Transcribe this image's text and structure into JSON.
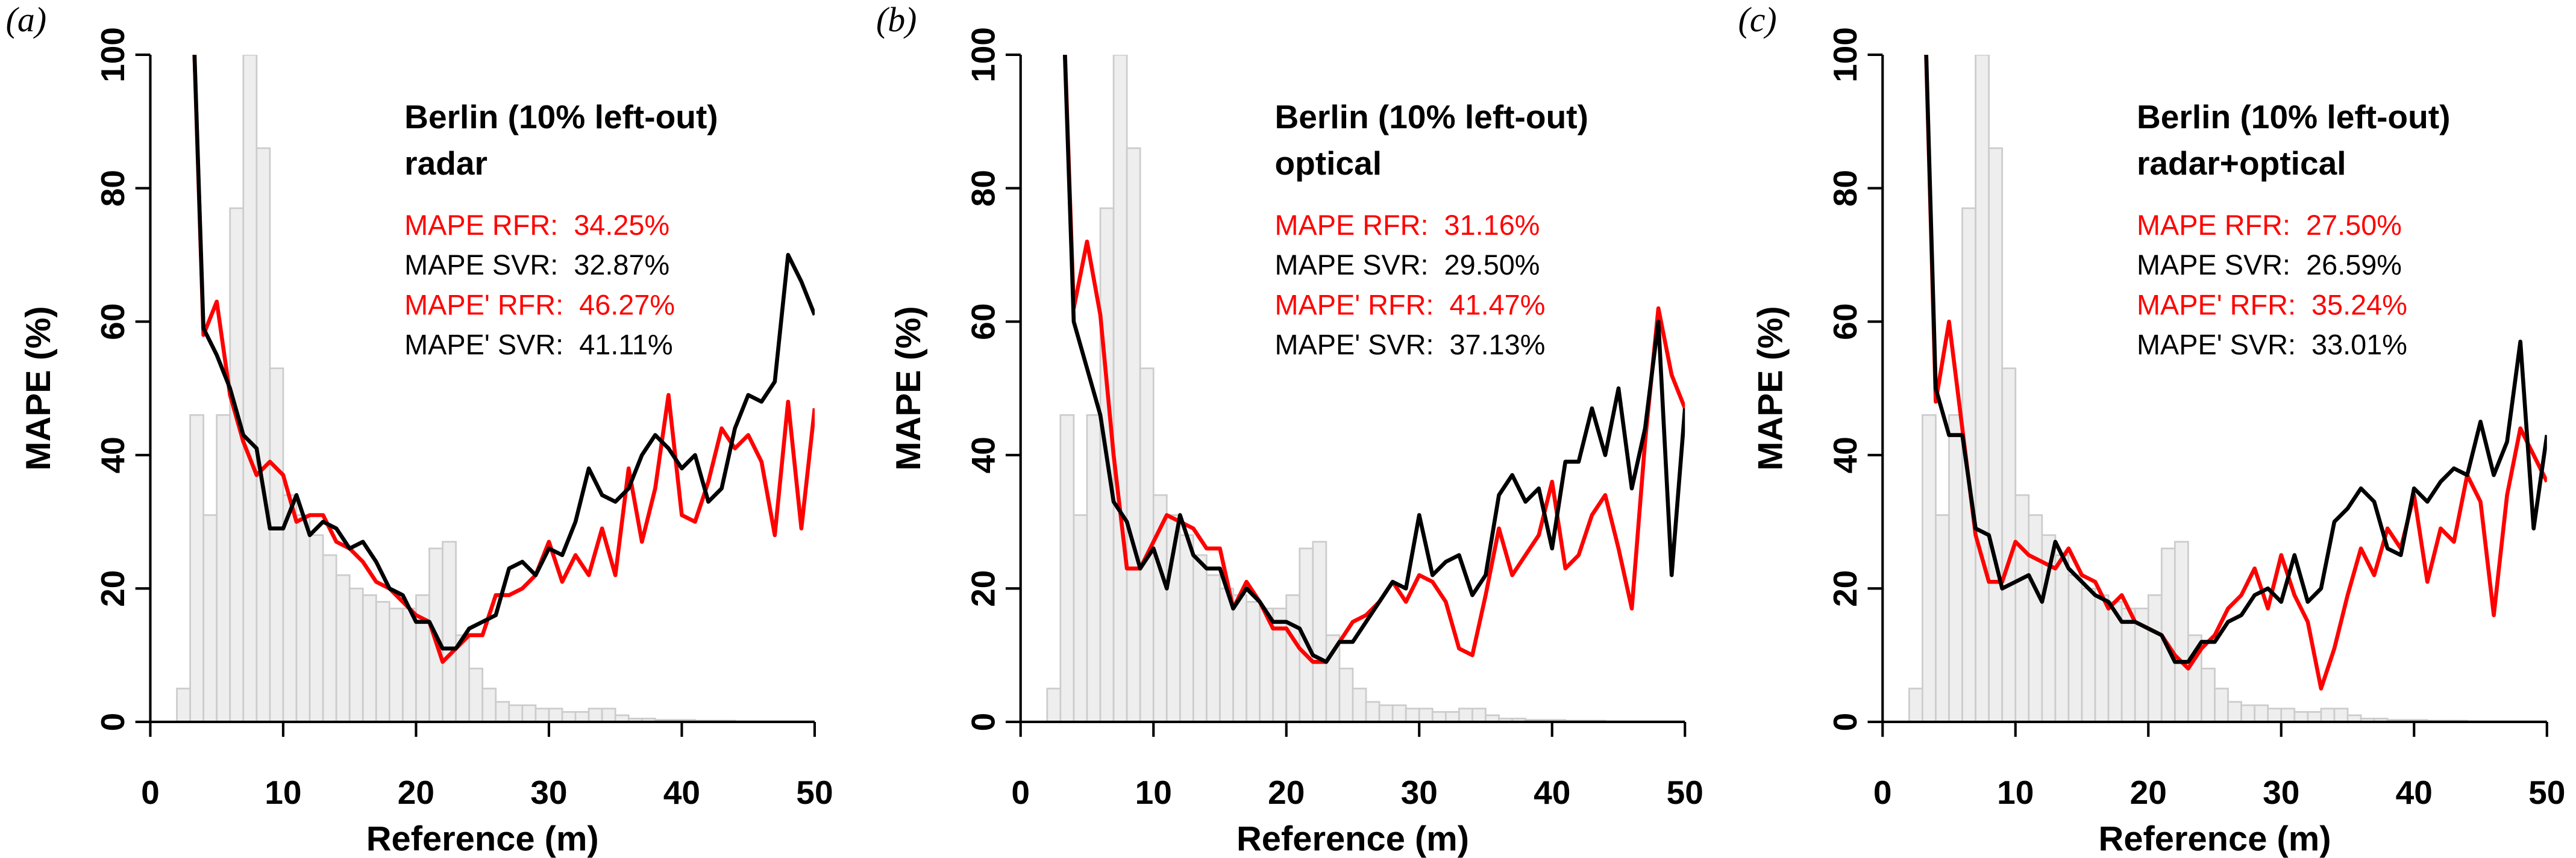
{
  "chart_data": [
    {
      "type": "line",
      "panel_label": "(a)",
      "title": "Berlin (10% left-out)",
      "subtitle": "radar",
      "annotations": [
        {
          "text": "MAPE RFR:  34.25%",
          "color": "#ff0000"
        },
        {
          "text": "MAPE SVR:  32.87%",
          "color": "#000000"
        },
        {
          "text": "MAPE' RFR:  46.27%",
          "color": "#ff0000"
        },
        {
          "text": "MAPE' SVR:  41.11%",
          "color": "#000000"
        }
      ],
      "xlabel": "Reference (m)",
      "ylabel": "MAPE (%)",
      "xlim": [
        0,
        50
      ],
      "ylim": [
        0,
        100
      ],
      "xticks": [
        0,
        10,
        20,
        30,
        40,
        50
      ],
      "yticks": [
        0,
        20,
        40,
        60,
        80,
        100
      ],
      "x": [
        3,
        4,
        5,
        6,
        7,
        8,
        9,
        10,
        11,
        12,
        13,
        14,
        15,
        16,
        17,
        18,
        19,
        20,
        21,
        22,
        23,
        24,
        25,
        26,
        27,
        28,
        29,
        30,
        31,
        32,
        33,
        34,
        35,
        36,
        37,
        38,
        39,
        40,
        41,
        42,
        43,
        44,
        45,
        46,
        47,
        48,
        49,
        50
      ],
      "series": [
        {
          "color": "#ff0000",
          "values": [
            120,
            58,
            63,
            49,
            42,
            37,
            39,
            37,
            30,
            31,
            31,
            27,
            26,
            24,
            21,
            20,
            18,
            16,
            15,
            9,
            11,
            13,
            13,
            19,
            19,
            20,
            22,
            27,
            21,
            25,
            22,
            29,
            22,
            38,
            27,
            35,
            49,
            31,
            30,
            36,
            44,
            41,
            43,
            39,
            28,
            48,
            29,
            47
          ]
        },
        {
          "color": "#000000",
          "values": [
            120,
            59,
            55,
            50,
            43,
            41,
            29,
            29,
            34,
            28,
            30,
            29,
            26,
            27,
            24,
            20,
            19,
            15,
            15,
            11,
            11,
            14,
            15,
            16,
            23,
            24,
            22,
            26,
            25,
            30,
            38,
            34,
            33,
            35,
            40,
            43,
            41,
            38,
            40,
            33,
            35,
            44,
            49,
            48,
            51,
            70,
            66,
            61
          ]
        }
      ],
      "histogram": {
        "fill": "#eeeeee",
        "stroke": "#cccccc",
        "bins": [
          2,
          3,
          4,
          5,
          6,
          7,
          8,
          9,
          10,
          11,
          12,
          13,
          14,
          15,
          16,
          17,
          18,
          19,
          20,
          21,
          22,
          23,
          24,
          25,
          26,
          27,
          28,
          29,
          30,
          31,
          32,
          33,
          34,
          35,
          36,
          37,
          38,
          39,
          40,
          41,
          42,
          43,
          44,
          45,
          46,
          47,
          48,
          49,
          50
        ],
        "counts": [
          5,
          46,
          31,
          46,
          77,
          100,
          86,
          53,
          34,
          31,
          28,
          25,
          22,
          20,
          19,
          18,
          17,
          17,
          19,
          26,
          27,
          13,
          8,
          5,
          3,
          2.5,
          2.5,
          2,
          2,
          1.5,
          1.5,
          2,
          2,
          1,
          0.5,
          0.5,
          0.3,
          0.3,
          0.3,
          0.2,
          0.2,
          0.2,
          0.1,
          0.1,
          0.1,
          0.1,
          0.1,
          0.1
        ]
      }
    },
    {
      "type": "line",
      "panel_label": "(b)",
      "title": "Berlin (10% left-out)",
      "subtitle": "optical",
      "annotations": [
        {
          "text": "MAPE RFR:  31.16%",
          "color": "#ff0000"
        },
        {
          "text": "MAPE SVR:  29.50%",
          "color": "#000000"
        },
        {
          "text": "MAPE' RFR:  41.47%",
          "color": "#ff0000"
        },
        {
          "text": "MAPE' SVR:  37.13%",
          "color": "#000000"
        }
      ],
      "xlabel": "Reference (m)",
      "ylabel": "MAPE (%)",
      "xlim": [
        0,
        50
      ],
      "ylim": [
        0,
        100
      ],
      "xticks": [
        0,
        10,
        20,
        30,
        40,
        50
      ],
      "yticks": [
        0,
        20,
        40,
        60,
        80,
        100
      ],
      "x": [
        3,
        4,
        5,
        6,
        7,
        8,
        9,
        10,
        11,
        12,
        13,
        14,
        15,
        16,
        17,
        18,
        19,
        20,
        21,
        22,
        23,
        24,
        25,
        26,
        27,
        28,
        29,
        30,
        31,
        32,
        33,
        34,
        35,
        36,
        37,
        38,
        39,
        40,
        41,
        42,
        43,
        44,
        45,
        46,
        47,
        48,
        49,
        50
      ],
      "series": [
        {
          "color": "#ff0000",
          "values": [
            120,
            62,
            72,
            61,
            40,
            23,
            23,
            27,
            31,
            30,
            29,
            26,
            26,
            17,
            21,
            18,
            14,
            14,
            11,
            9,
            9,
            12,
            15,
            16,
            18,
            21,
            18,
            22,
            21,
            18,
            11,
            10,
            19,
            29,
            22,
            25,
            28,
            36,
            23,
            25,
            31,
            34,
            26,
            17,
            42,
            62,
            52,
            47
          ]
        },
        {
          "color": "#000000",
          "values": [
            120,
            60,
            53,
            46,
            33,
            30,
            23,
            26,
            20,
            31,
            25,
            23,
            23,
            17,
            20,
            18,
            15,
            15,
            14,
            10,
            9,
            12,
            12,
            15,
            18,
            21,
            20,
            31,
            22,
            24,
            25,
            19,
            22,
            34,
            37,
            33,
            35,
            26,
            39,
            39,
            47,
            40,
            50,
            35,
            44,
            60,
            22,
            47
          ]
        }
      ],
      "histogram": {
        "fill": "#eeeeee",
        "stroke": "#cccccc",
        "bins": [
          2,
          3,
          4,
          5,
          6,
          7,
          8,
          9,
          10,
          11,
          12,
          13,
          14,
          15,
          16,
          17,
          18,
          19,
          20,
          21,
          22,
          23,
          24,
          25,
          26,
          27,
          28,
          29,
          30,
          31,
          32,
          33,
          34,
          35,
          36,
          37,
          38,
          39,
          40,
          41,
          42,
          43,
          44,
          45,
          46,
          47,
          48,
          49,
          50
        ],
        "counts": [
          5,
          46,
          31,
          46,
          77,
          100,
          86,
          53,
          34,
          31,
          28,
          25,
          22,
          20,
          19,
          18,
          17,
          17,
          19,
          26,
          27,
          13,
          8,
          5,
          3,
          2.5,
          2.5,
          2,
          2,
          1.5,
          1.5,
          2,
          2,
          1,
          0.5,
          0.5,
          0.3,
          0.3,
          0.3,
          0.2,
          0.2,
          0.2,
          0.1,
          0.1,
          0.1,
          0.1,
          0.1,
          0.1
        ]
      }
    },
    {
      "type": "line",
      "panel_label": "(c)",
      "title": "Berlin (10% left-out)",
      "subtitle": "radar+optical",
      "annotations": [
        {
          "text": "MAPE RFR:  27.50%",
          "color": "#ff0000"
        },
        {
          "text": "MAPE SVR:  26.59%",
          "color": "#000000"
        },
        {
          "text": "MAPE' RFR:  35.24%",
          "color": "#ff0000"
        },
        {
          "text": "MAPE' SVR:  33.01%",
          "color": "#000000"
        }
      ],
      "xlabel": "Reference (m)",
      "ylabel": "MAPE (%)",
      "xlim": [
        0,
        50
      ],
      "ylim": [
        0,
        100
      ],
      "xticks": [
        0,
        10,
        20,
        30,
        40,
        50
      ],
      "yticks": [
        0,
        20,
        40,
        60,
        80,
        100
      ],
      "x": [
        3,
        4,
        5,
        6,
        7,
        8,
        9,
        10,
        11,
        12,
        13,
        14,
        15,
        16,
        17,
        18,
        19,
        20,
        21,
        22,
        23,
        24,
        25,
        26,
        27,
        28,
        29,
        30,
        31,
        32,
        33,
        34,
        35,
        36,
        37,
        38,
        39,
        40,
        41,
        42,
        43,
        44,
        45,
        46,
        47,
        48,
        49,
        50
      ],
      "series": [
        {
          "color": "#ff0000",
          "values": [
            120,
            48,
            60,
            44,
            28,
            21,
            21,
            27,
            25,
            24,
            23,
            26,
            22,
            21,
            17,
            19,
            15,
            14,
            13,
            10,
            8,
            11,
            13,
            17,
            19,
            23,
            17,
            25,
            19,
            15,
            5,
            11,
            19,
            26,
            22,
            29,
            26,
            34,
            21,
            29,
            27,
            37,
            33,
            16,
            34,
            44,
            40,
            36
          ]
        },
        {
          "color": "#000000",
          "values": [
            120,
            50,
            43,
            43,
            29,
            28,
            20,
            21,
            22,
            18,
            27,
            23,
            21,
            19,
            18,
            15,
            15,
            14,
            13,
            9,
            9,
            12,
            12,
            15,
            16,
            19,
            20,
            18,
            25,
            18,
            20,
            30,
            32,
            35,
            33,
            26,
            25,
            35,
            33,
            36,
            38,
            37,
            45,
            37,
            42,
            57,
            29,
            43
          ]
        }
      ],
      "histogram": {
        "fill": "#eeeeee",
        "stroke": "#cccccc",
        "bins": [
          2,
          3,
          4,
          5,
          6,
          7,
          8,
          9,
          10,
          11,
          12,
          13,
          14,
          15,
          16,
          17,
          18,
          19,
          20,
          21,
          22,
          23,
          24,
          25,
          26,
          27,
          28,
          29,
          30,
          31,
          32,
          33,
          34,
          35,
          36,
          37,
          38,
          39,
          40,
          41,
          42,
          43,
          44,
          45,
          46,
          47,
          48,
          49,
          50
        ],
        "counts": [
          5,
          46,
          31,
          46,
          77,
          100,
          86,
          53,
          34,
          31,
          28,
          25,
          22,
          20,
          19,
          18,
          17,
          17,
          19,
          26,
          27,
          13,
          8,
          5,
          3,
          2.5,
          2.5,
          2,
          2,
          1.5,
          1.5,
          2,
          2,
          1,
          0.5,
          0.5,
          0.3,
          0.3,
          0.3,
          0.2,
          0.2,
          0.2,
          0.1,
          0.1,
          0.1,
          0.1,
          0.1,
          0.1
        ]
      }
    }
  ]
}
